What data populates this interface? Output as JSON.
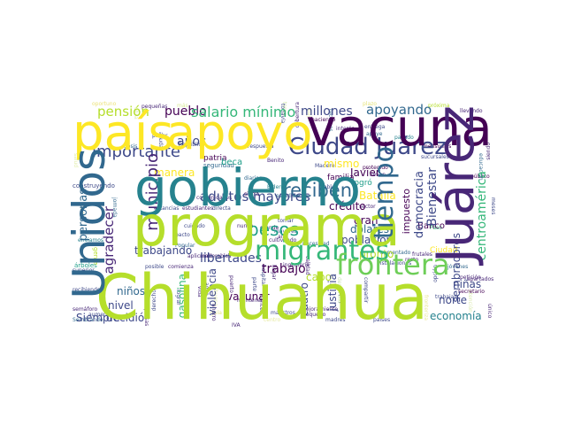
{
  "colors": {
    "background": "#ffffff",
    "palette": [
      "#440154",
      "#482777",
      "#3e4989",
      "#31688e",
      "#26828e",
      "#1f9e89",
      "#35b779",
      "#6ece58",
      "#b5de2b",
      "#fde725"
    ]
  },
  "words": {
    "chihuahua": "Chihuahua",
    "programa": "programa",
    "gobierno": "gobierno",
    "vacuna": "vacuna",
    "pais": "país",
    "apoyo": "apoyo",
    "unidos": "Unidos",
    "juarez_v": "Juárez",
    "ciudad_juarez": "Ciudad Juárez",
    "migrantes": "migrantes",
    "frontera": "frontera",
    "importante": "importante",
    "salario_minimo": "salario mínimo",
    "pesos": "pesos",
    "reciben": "reciben",
    "adultos_mayores": "adultos mayores",
    "tiempo": "tiempo",
    "apoyando": "apoyando",
    "millones": "millones",
    "pension": "pensión",
    "pueblo": "pueblo",
    "anos": "años",
    "municipio": "municipio",
    "agradecer": "agradecer",
    "libertades": "libertades",
    "trabajo": "trabajo",
    "trabajando": "trabajando",
    "credito": "crédito",
    "dolares": "dólares",
    "poblacion": "población",
    "centroamerica": "centroamérica",
    "bienestar": "Bienestar",
    "batalla": "Batalla",
    "democracia": "democracia",
    "impuesto": "impuesto",
    "gran": "gran",
    "banco": "Banco",
    "mismo": "mismo",
    "javier": "Javier",
    "familia": "familia",
    "logro": "logró",
    "beca": "beca",
    "manera": "manera",
    "patria": "patria",
    "seguridad": "seguridad",
    "ninos": "niños",
    "nivel": "nivel",
    "gasolina": "gasolina",
    "vacunar": "vacunar",
    "decidio": "decidió",
    "violencia": "violencia",
    "cabo": "cabo",
    "pronto": "pronto",
    "justicia": "justicia",
    "cuatro": "cuatro",
    "norte": "norte",
    "ninas": "niñas",
    "economia": "economía",
    "sembradores": "sembradores",
    "personas": "personas",
    "siempre": "Siempre",
    "construyendo": "construyendo",
    "ciudad": "Ciudad",
    "gente": "gente",
    "arboles": "árboles",
    "dosis": "dosis",
    "oportuno": "oportuno",
    "pequenas": "pequeñas",
    "llevando": "llevando",
    "proxima": "próxima",
    "haciendo": "haciendo",
    "interes": "interés",
    "entrega": "entrega",
    "apoye": "apoye",
    "republica": "República",
    "mensuales": "mensuales",
    "pasado": "pasado",
    "protegido": "protegido",
    "llevan": "llevan",
    "madero": "Madero",
    "diarios": "diarios",
    "biden": "Biden",
    "doble": "doble",
    "estudiar": "estudiar",
    "sierra": "sierra",
    "comunidades": "comunidades",
    "estancias": "estancias",
    "estudiantes": "estudiantes",
    "directa": "directa",
    "cuidado": "cuidado",
    "pacto": "pacto",
    "popular": "Popular",
    "maderables": "maderables",
    "tomar": "tomar",
    "grande": "grande",
    "necesidad": "necesidad",
    "ingenieria": "ingeniería",
    "aumentado": "aumentado",
    "instalaciones": "instalaciones",
    "frutales": "frutales",
    "jovenes": "jóvenes",
    "peticion": "petición",
    "secretario": "secretario",
    "trabajan": "trabajan",
    "semaforo": "semáforo",
    "sembrando": "Sembrando",
    "recibiendo": "recibiendo",
    "superior": "superior",
    "enviamos": "enviamos",
    "posible": "posible",
    "comienza": "comienza",
    "aplicando": "aplicando",
    "cultivando": "cultivando",
    "respuesta": "respuesta",
    "aumentar": "aumentar",
    "resto": "resto",
    "paises": "países",
    "sucursales": "sucursales",
    "publico": "público",
    "apartados": "apartados",
    "pagar": "pagar",
    "mayores": "mayores",
    "aire": "aire",
    "cobertura": "cobertura",
    "siendo": "siendo",
    "educacion": "educación",
    "ayuda": "ayuda",
    "benito": "Benito",
    "calidad": "calidad",
    "compartir": "compartir",
    "derecho": "derecho",
    "puerto": "puerto",
    "opcion": "opción",
    "llegar": "llegar",
    "meses": "meses",
    "casas": "casas",
    "paso": "Paso",
    "sector": "sector",
    "empresas": "empresas",
    "estado": "estado",
    "cancer": "cáncer",
    "unico": "único",
    "mantener": "mantener",
    "maestros": "maestros",
    "pequeno": "pequeño",
    "todavia": "todavía",
    "jornada": "jornada",
    "madres": "madres",
    "recursos": "recursos",
    "vida": "vida",
    "agua": "agua",
    "ahorro": "ahorro",
    "lograr": "lograr",
    "nunca": "nunca",
    "hospital": "hospital",
    "mejoramiento": "mejoramiento",
    "parte": "parte",
    "desarrollo": "desarrollo",
    "iva": "IVA",
    "tarea": "tarea",
    "centro": "centro",
    "atencion": "atención",
    "guia": "guía",
    "salud": "salud",
    "hacer": "hacer",
    "bueno": "bueno",
    "frontera_small": "fronteriza",
    "plazo": "plazo",
    "obra": "obra",
    "bajar": "bajar",
    "mas": "más"
  }
}
